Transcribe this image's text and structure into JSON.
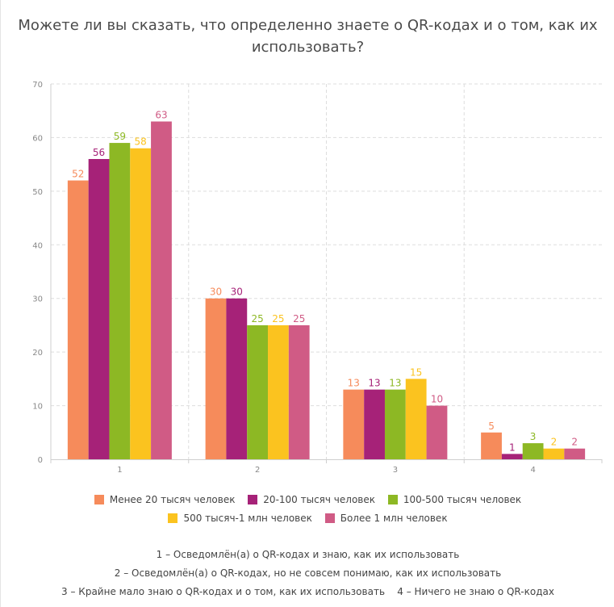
{
  "chart_data": {
    "type": "bar",
    "title": "Можете ли вы сказать, что определенно знаете о QR-кодах и о том, как их использовать?",
    "categories": [
      "1",
      "2",
      "3",
      "4"
    ],
    "ylim": [
      0,
      70
    ],
    "yticks": [
      0,
      10,
      20,
      30,
      40,
      50,
      60,
      70
    ],
    "grid": true,
    "legend_position": "bottom",
    "series": [
      {
        "name": "Менее 20 тысяч человек",
        "color": "#f68b5b",
        "values": [
          52,
          30,
          13,
          5
        ]
      },
      {
        "name": "20-100 тысяч человек",
        "color": "#a62278",
        "values": [
          56,
          30,
          13,
          1
        ]
      },
      {
        "name": "100-500 тысяч человек",
        "color": "#8db824",
        "values": [
          59,
          25,
          13,
          3
        ]
      },
      {
        "name": "500 тысяч-1 млн человек",
        "color": "#fbc31f",
        "values": [
          58,
          25,
          15,
          2
        ]
      },
      {
        "name": "Более 1 млн человек",
        "color": "#d05b85",
        "values": [
          63,
          25,
          10,
          2
        ]
      }
    ]
  },
  "notes": {
    "line1": "1 – Осведомлён(а) о QR-кодах и знаю, как их использовать",
    "line2": "2 – Осведомлён(а) о QR-кодах, но не совсем понимаю, как их использовать",
    "line3": "3 – Крайне мало знаю о QR-кодах и о том, как их использовать    4 – Ничего не знаю о QR-кодах"
  }
}
